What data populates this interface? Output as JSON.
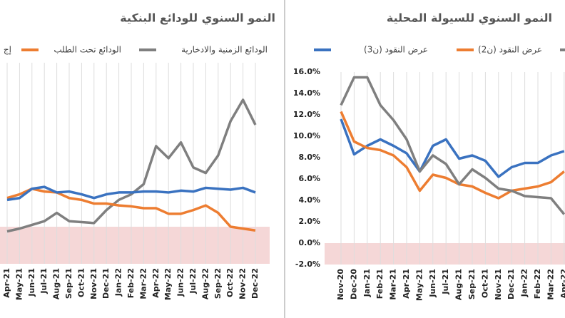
{
  "chart_data": [
    {
      "type": "line",
      "title": "النمو السنوي للودائع البنكية",
      "categories": [
        "Apr-21",
        "May-21",
        "Jun-21",
        "Jul-21",
        "Aug-21",
        "Sep-21",
        "Oct-21",
        "Nov-21",
        "Dec-21",
        "Jan-22",
        "Feb-22",
        "Mar-22",
        "Apr-22",
        "May-22",
        "Jun-22",
        "Jul-22",
        "Aug-22",
        "Sep-22",
        "Oct-22",
        "Nov-22",
        "Dec-22"
      ],
      "series": [
        {
          "name": "الودائع الزمنية والادخارية",
          "color": "#7f7f7f",
          "values": [
            -0.5,
            -0.2,
            0.2,
            0.6,
            1.5,
            0.6,
            0.5,
            0.4,
            1.8,
            2.9,
            3.5,
            4.6,
            8.7,
            7.4,
            9.1,
            6.4,
            5.8,
            7.7,
            11.4,
            13.7,
            11.0
          ]
        },
        {
          "name": "الودائع تحت الطلب",
          "color": "#ed7d31",
          "values": [
            3.1,
            3.5,
            4.1,
            3.8,
            3.7,
            3.1,
            2.9,
            2.5,
            2.5,
            2.3,
            2.2,
            2.0,
            2.0,
            1.4,
            1.4,
            1.8,
            2.3,
            1.5,
            0.0,
            -0.2,
            -0.4
          ]
        },
        {
          "name": "إج",
          "color": "#3a72c0",
          "values": [
            2.9,
            3.1,
            4.1,
            4.3,
            3.7,
            3.8,
            3.5,
            3.1,
            3.5,
            3.7,
            3.7,
            3.8,
            3.8,
            3.7,
            3.9,
            3.8,
            4.2,
            4.1,
            4.0,
            4.2,
            3.7
          ]
        }
      ],
      "ylim": [
        -4,
        17.7
      ],
      "grid": true
    },
    {
      "type": "line",
      "title": "النمو السنوي للسيولة المحلية",
      "categories": [
        "Nov-20",
        "Dec-20",
        "Jan-21",
        "Feb-21",
        "Mar-21",
        "Apr-21",
        "May-21",
        "Jun-21",
        "Jul-21",
        "Aug-21",
        "Sep-21",
        "Oct-21",
        "Nov-21",
        "Dec-21",
        "Jan-22",
        "Feb-22",
        "Mar-22",
        "Apr-22"
      ],
      "series": [
        {
          "name": "عرض النقود (ن3)",
          "color": "#3a72c0",
          "values": [
            11.6,
            8.3,
            9.1,
            9.7,
            9.1,
            8.4,
            6.7,
            9.1,
            9.7,
            7.9,
            8.2,
            7.7,
            6.2,
            7.1,
            7.5,
            7.5,
            8.2,
            8.6
          ]
        },
        {
          "name": "عرض النقود (ن2)",
          "color": "#ed7d31",
          "values": [
            12.3,
            9.5,
            8.9,
            8.7,
            8.2,
            7.1,
            4.9,
            6.4,
            6.1,
            5.5,
            5.3,
            4.7,
            4.2,
            4.9,
            5.1,
            5.3,
            5.7,
            6.7
          ]
        },
        {
          "color": "#7f7f7f",
          "values": [
            12.9,
            15.5,
            15.5,
            12.9,
            11.5,
            9.7,
            6.7,
            8.2,
            7.4,
            5.5,
            6.9,
            6.1,
            5.1,
            4.9,
            4.4,
            4.3,
            4.2,
            2.7
          ]
        }
      ],
      "ylim": [
        -2,
        16
      ],
      "yticks": [
        {
          "value": 16,
          "label": "16.0%"
        },
        {
          "value": 14,
          "label": "14.0%"
        },
        {
          "value": 12,
          "label": "12.0%"
        },
        {
          "value": 10,
          "label": "10.0%"
        },
        {
          "value": 8,
          "label": "8.0%"
        },
        {
          "value": 6,
          "label": "6.0%"
        },
        {
          "value": 4,
          "label": "4.0%"
        },
        {
          "value": 2,
          "label": "2.0%"
        },
        {
          "value": 0,
          "label": "0.0%"
        },
        {
          "value": -2,
          "label": "-2.0%"
        }
      ],
      "grid": true
    }
  ]
}
